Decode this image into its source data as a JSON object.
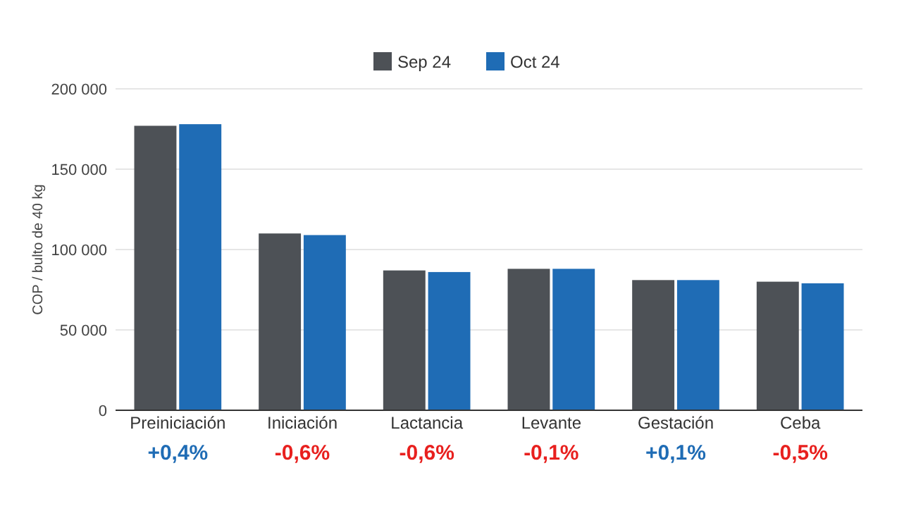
{
  "chart_data": {
    "type": "bar",
    "ylabel": "COP / bulto de 40 kg",
    "categories": [
      "Preiniciación",
      "Iniciación",
      "Lactancia",
      "Levante",
      "Gestación",
      "Ceba"
    ],
    "series": [
      {
        "name": "Sep 24",
        "color": "#4d5156",
        "values": [
          177000,
          110000,
          87000,
          88000,
          81000,
          80000
        ]
      },
      {
        "name": "Oct 24",
        "color": "#1f6cb5",
        "values": [
          178000,
          109000,
          86000,
          88000,
          81000,
          79000
        ]
      }
    ],
    "ylim": [
      0,
      200000
    ],
    "yticks": [
      {
        "value": 0,
        "label": "0"
      },
      {
        "value": 50000,
        "label": "50 000"
      },
      {
        "value": 100000,
        "label": "100 000"
      },
      {
        "value": 150000,
        "label": "150 000"
      },
      {
        "value": 200000,
        "label": "200 000"
      }
    ],
    "grid": "y",
    "legend": "top",
    "annotations": [
      "+0,4%",
      "-0,6%",
      "-0,6%",
      "-0,1%",
      "+0,1%",
      "-0,5%"
    ]
  }
}
